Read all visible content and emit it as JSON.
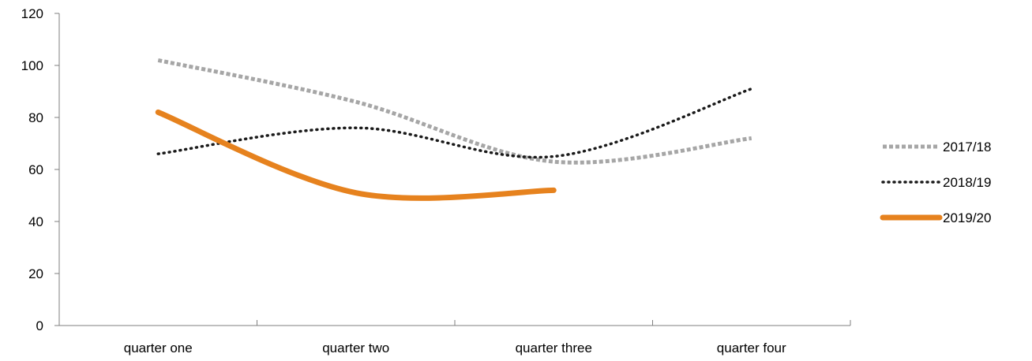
{
  "chart_data": {
    "type": "line",
    "title": "",
    "xlabel": "",
    "ylabel": "",
    "categories": [
      "quarter one",
      "quarter two",
      "quarter three",
      "quarter four"
    ],
    "ylim": [
      0,
      120
    ],
    "yticks": [
      "0",
      "20",
      "40",
      "60",
      "80",
      "100",
      "120"
    ],
    "grid": false,
    "smooth": true,
    "legend_position": "right",
    "series": [
      {
        "name": "2017/18",
        "values": [
          102,
          86,
          63,
          72
        ],
        "color": "#a6a6a6",
        "line_style": "dashed"
      },
      {
        "name": "2018/19",
        "values": [
          66,
          76,
          65,
          91
        ],
        "color": "#1a1a1a",
        "line_style": "dotted"
      },
      {
        "name": "2019/20",
        "values": [
          82,
          51,
          52,
          null
        ],
        "color": "#e6821e",
        "line_style": "solid"
      }
    ]
  }
}
